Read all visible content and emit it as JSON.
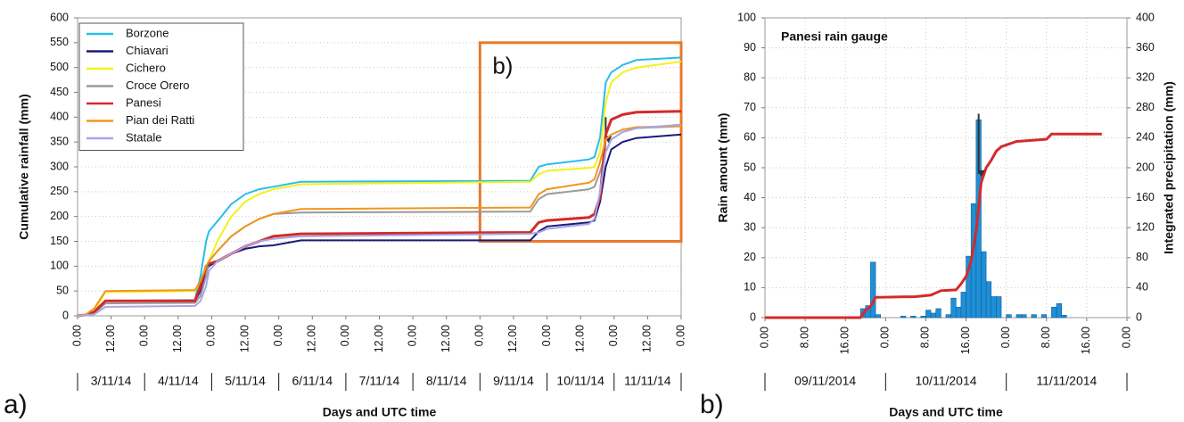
{
  "chart_data": [
    {
      "type": "line",
      "panel_label": "a)",
      "x_label": "Days and UTC time",
      "y_label": "Cumulative rainfall (mm)",
      "xlim": [
        0,
        216
      ],
      "ylim": [
        0,
        600
      ],
      "yticks": [
        0,
        50,
        100,
        150,
        200,
        250,
        300,
        350,
        400,
        450,
        500,
        550,
        600
      ],
      "xticks": [
        {
          "value": 0,
          "label": "0.00"
        },
        {
          "value": 12,
          "label": "12.00"
        },
        {
          "value": 24,
          "label": "0.00"
        },
        {
          "value": 36,
          "label": "12.00"
        },
        {
          "value": 48,
          "label": "0.00"
        },
        {
          "value": 60,
          "label": "12.00"
        },
        {
          "value": 72,
          "label": "0.00"
        },
        {
          "value": 84,
          "label": "12.00"
        },
        {
          "value": 96,
          "label": "0.00"
        },
        {
          "value": 108,
          "label": "12.00"
        },
        {
          "value": 120,
          "label": "0.00"
        },
        {
          "value": 132,
          "label": "12.00"
        },
        {
          "value": 144,
          "label": "0.00"
        },
        {
          "value": 156,
          "label": "12.00"
        },
        {
          "value": 168,
          "label": "0.00"
        },
        {
          "value": 180,
          "label": "12.00"
        },
        {
          "value": 192,
          "label": "0.00"
        },
        {
          "value": 204,
          "label": "12.00"
        },
        {
          "value": 216,
          "label": "0.00"
        }
      ],
      "day_labels": [
        "3/11/14",
        "4/11/14",
        "5/11/14",
        "6/11/14",
        "7/11/14",
        "8/11/14",
        "9/11/14",
        "10/11/14",
        "11/11/14"
      ],
      "grid": true,
      "legend": "upper left",
      "highlight_box": {
        "x": [
          144,
          216
        ],
        "y": [
          150,
          550
        ],
        "color": "#e8792a",
        "label": "b)"
      },
      "arrow": {
        "x": 189,
        "y": [
          400,
          355
        ]
      },
      "x": [
        0,
        3,
        6,
        10,
        42,
        44,
        46,
        47,
        50,
        55,
        60,
        65,
        70,
        80,
        162,
        165,
        168,
        183,
        185,
        187,
        189,
        191,
        195,
        200,
        216
      ],
      "series": [
        {
          "name": "Borzone",
          "color": "#29bde8",
          "values": [
            0,
            2,
            5,
            30,
            32,
            80,
            150,
            170,
            190,
            225,
            245,
            255,
            260,
            270,
            272,
            300,
            305,
            315,
            320,
            360,
            470,
            490,
            505,
            515,
            520
          ]
        },
        {
          "name": "Chiavari",
          "color": "#1a1a7a",
          "values": [
            0,
            2,
            8,
            30,
            30,
            50,
            90,
            100,
            110,
            125,
            135,
            140,
            142,
            152,
            152,
            170,
            180,
            188,
            192,
            230,
            300,
            335,
            350,
            358,
            365
          ]
        },
        {
          "name": "Cichero",
          "color": "#f2f21a",
          "values": [
            0,
            2,
            10,
            48,
            50,
            70,
            90,
            110,
            150,
            200,
            230,
            245,
            255,
            265,
            270,
            285,
            292,
            298,
            300,
            330,
            430,
            470,
            490,
            500,
            512
          ]
        },
        {
          "name": "Croce Orero",
          "color": "#9a9a9a",
          "values": [
            0,
            1,
            5,
            25,
            26,
            40,
            80,
            110,
            130,
            160,
            180,
            195,
            205,
            208,
            210,
            235,
            245,
            255,
            260,
            290,
            330,
            355,
            370,
            378,
            382
          ]
        },
        {
          "name": "Panesi",
          "color": "#d42a2a",
          "values": [
            0,
            2,
            8,
            30,
            30,
            60,
            100,
            105,
            110,
            125,
            140,
            150,
            160,
            165,
            168,
            188,
            192,
            198,
            205,
            240,
            365,
            395,
            405,
            410,
            412
          ]
        },
        {
          "name": "Pian dei Ratti",
          "color": "#f0961e",
          "values": [
            0,
            3,
            15,
            50,
            52,
            70,
            100,
            110,
            130,
            160,
            180,
            195,
            205,
            215,
            218,
            245,
            255,
            268,
            275,
            310,
            355,
            365,
            375,
            380,
            382
          ]
        },
        {
          "name": "Statale",
          "color": "#a6a6e8",
          "values": [
            0,
            1,
            3,
            18,
            20,
            30,
            60,
            90,
            110,
            125,
            140,
            150,
            155,
            160,
            165,
            168,
            175,
            185,
            195,
            250,
            330,
            355,
            370,
            378,
            385
          ]
        }
      ]
    },
    {
      "type": "bar",
      "panel_label": "b)",
      "title": "Panesi rain gauge",
      "x_label": "Days and UTC time",
      "y_label": "Rain amount (mm)",
      "y2_label": "Integrated precipitation (mm)",
      "xlim": [
        0,
        72
      ],
      "ylim": [
        0,
        100
      ],
      "y2lim": [
        0,
        400
      ],
      "yticks": [
        0,
        10,
        20,
        30,
        40,
        50,
        60,
        70,
        80,
        90,
        100
      ],
      "y2ticks": [
        0,
        40,
        80,
        120,
        160,
        200,
        240,
        280,
        320,
        360,
        400
      ],
      "xticks": [
        {
          "value": 0,
          "label": "0.00"
        },
        {
          "value": 8,
          "label": "8.00"
        },
        {
          "value": 16,
          "label": "16.00"
        },
        {
          "value": 24,
          "label": "0.00"
        },
        {
          "value": 32,
          "label": "8.00"
        },
        {
          "value": 40,
          "label": "16.00"
        },
        {
          "value": 48,
          "label": "0.00"
        },
        {
          "value": 56,
          "label": "8.00"
        },
        {
          "value": 64,
          "label": "16.00"
        },
        {
          "value": 72,
          "label": "0.00"
        }
      ],
      "day_labels": [
        "09/11/2014",
        "10/11/2014",
        "11/11/2014"
      ],
      "grid": true,
      "arrow": {
        "x": 42.5,
        "y": [
          68,
          48
        ]
      },
      "series": [
        {
          "type": "bar",
          "color": "#1f8fd8",
          "x": [
            19,
            20,
            21,
            22,
            27,
            29,
            31,
            32,
            33,
            34,
            36,
            37,
            38,
            39,
            40,
            41,
            42,
            43,
            44,
            45,
            46,
            48,
            50,
            51,
            53,
            55,
            57,
            58,
            59
          ],
          "values": [
            3,
            4,
            18.5,
            1,
            0.5,
            0.5,
            0.5,
            2.5,
            1.5,
            3,
            1,
            6.5,
            3.5,
            8.5,
            20.5,
            38,
            66,
            22,
            12,
            7,
            7,
            1,
            1,
            1,
            1,
            1,
            3.5,
            4.7,
            0.8
          ]
        },
        {
          "type": "line",
          "color": "#d42a2a",
          "axis": "y2",
          "x": [
            0,
            19,
            20,
            21,
            22,
            30,
            33,
            35,
            38,
            39,
            40,
            41,
            42,
            43,
            44,
            45,
            46,
            47,
            50,
            54,
            56,
            57,
            67
          ],
          "values": [
            0,
            0,
            10,
            15,
            27,
            28,
            30,
            36,
            37,
            45,
            55,
            75,
            115,
            180,
            200,
            210,
            222,
            228,
            235,
            237,
            238,
            245,
            245
          ]
        }
      ]
    }
  ]
}
